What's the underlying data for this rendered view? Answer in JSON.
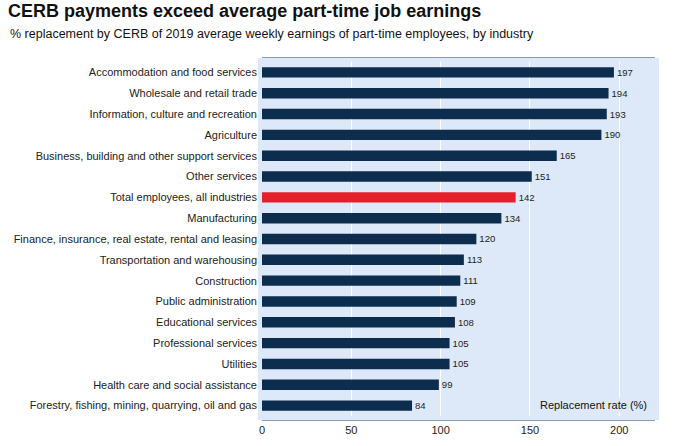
{
  "chart_data": {
    "type": "bar",
    "title": "CERB payments exceed average part-time job earnings",
    "subtitle": "% replacement by CERB of 2019 average weekly earnings of part-time employees, by industry",
    "xlabel": "Replacement rate (%)",
    "orientation": "horizontal",
    "categories": [
      "Accommodation and food services",
      "Wholesale and retail trade",
      "Information, culture and recreation",
      "Agriculture",
      "Business, building and other support services",
      "Other services",
      "Total employees, all industries",
      "Manufacturing",
      "Finance, insurance, real estate, rental and leasing",
      "Transportation and warehousing",
      "Construction",
      "Public administration",
      "Educational services",
      "Professional services",
      "Utilities",
      "Health care and social assistance",
      "Forestry, fishing, mining, quarrying, oil and gas"
    ],
    "values": [
      197,
      194,
      193,
      190,
      165,
      151,
      142,
      134,
      120,
      113,
      111,
      109,
      108,
      105,
      105,
      99,
      84
    ],
    "colors": [
      "#0c2d4e",
      "#0c2d4e",
      "#0c2d4e",
      "#0c2d4e",
      "#0c2d4e",
      "#0c2d4e",
      "#e3202b",
      "#0c2d4e",
      "#0c2d4e",
      "#0c2d4e",
      "#0c2d4e",
      "#0c2d4e",
      "#0c2d4e",
      "#0c2d4e",
      "#0c2d4e",
      "#0c2d4e",
      "#0c2d4e"
    ],
    "xlim": [
      0,
      220
    ],
    "xticks": [
      0,
      50,
      100,
      150,
      200
    ],
    "grid": true,
    "data_labels": true
  }
}
